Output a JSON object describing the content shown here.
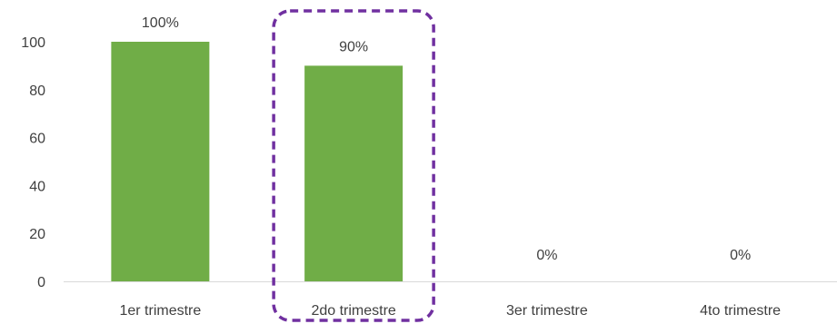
{
  "chart_data": {
    "type": "bar",
    "categories": [
      "1er trimestre",
      "2do trimestre",
      "3er trimestre",
      "4to trimestre"
    ],
    "values": [
      100,
      90,
      0,
      0
    ],
    "data_labels": [
      "100%",
      "90%",
      "0%",
      "0%"
    ],
    "ylim": [
      0,
      100
    ],
    "yticks": [
      "0",
      "20",
      "40",
      "60",
      "80",
      "100"
    ],
    "title": "",
    "xlabel": "",
    "ylabel": "",
    "grid": false,
    "bar_color": "#70AD47",
    "highlight": {
      "category_index": 1,
      "style": "dashed-rounded-box",
      "color": "#7030A0"
    }
  }
}
